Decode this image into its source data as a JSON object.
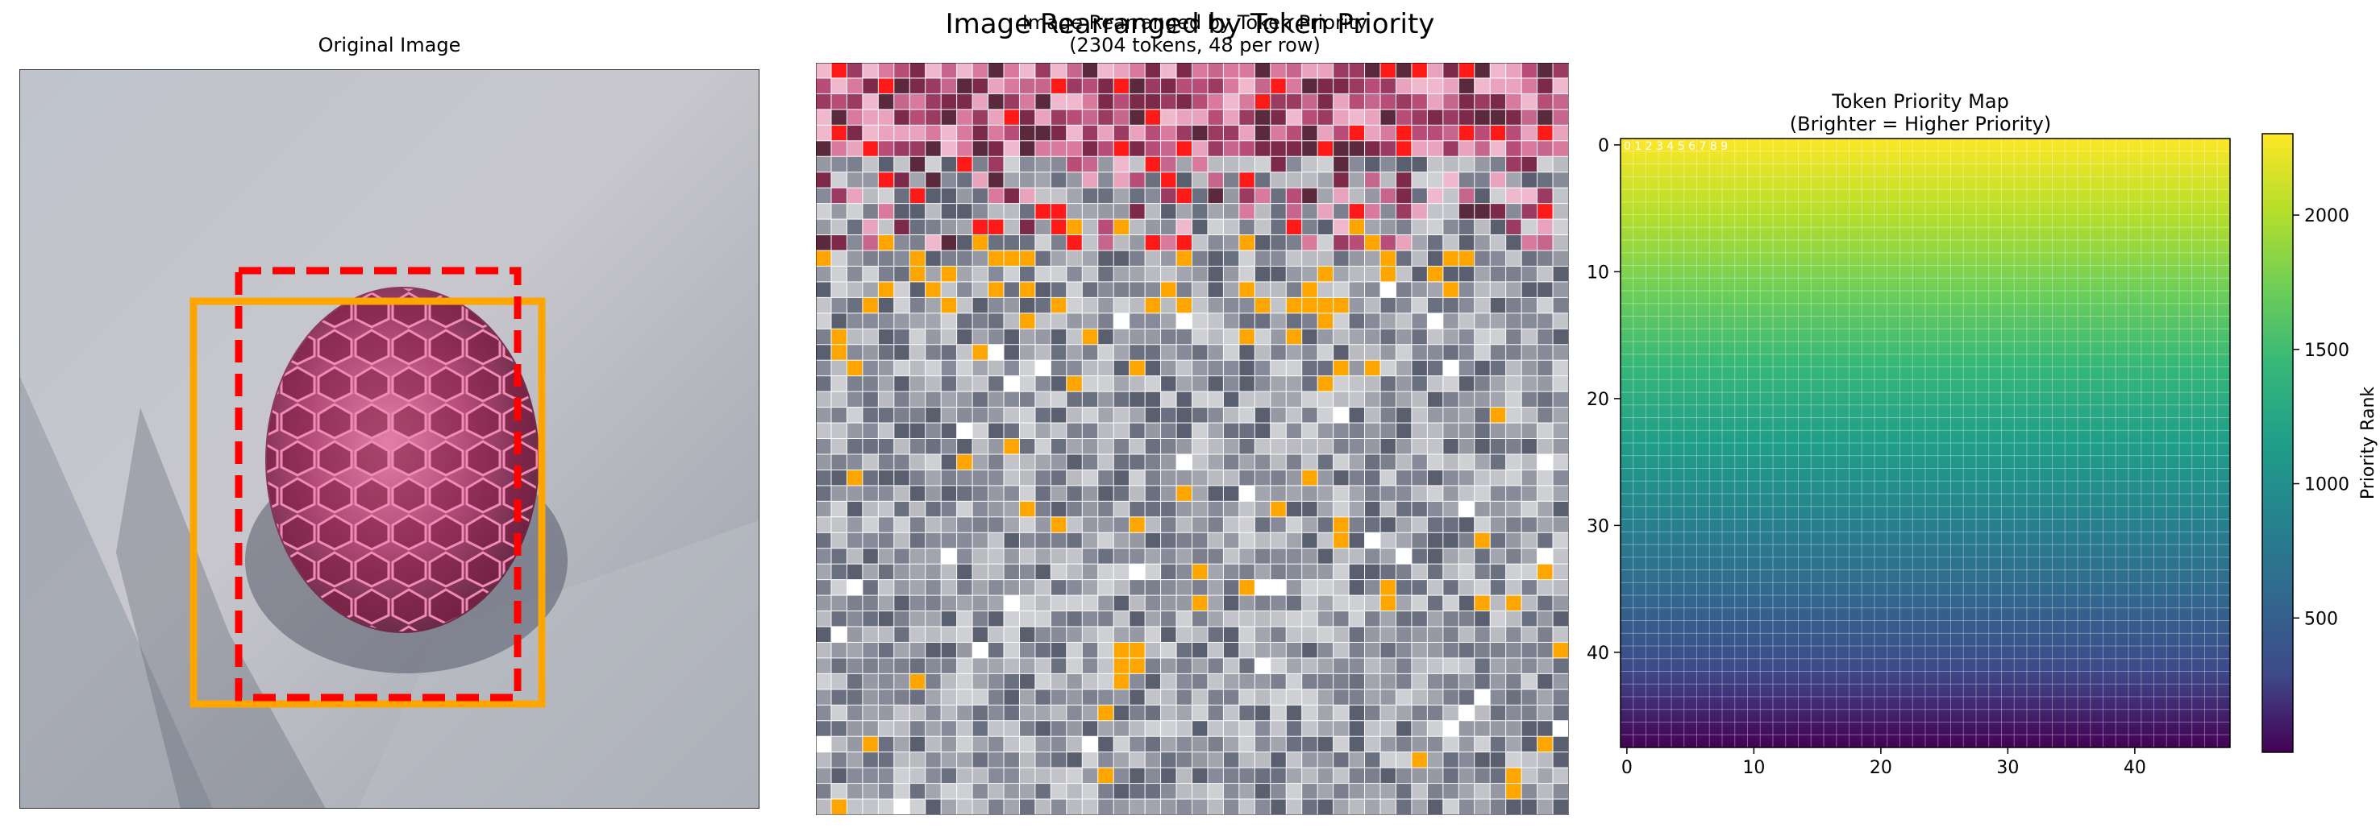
{
  "figure": {
    "suptitle": "Image Rearranged by Token Priority"
  },
  "panel1": {
    "title": "Original Image"
  },
  "panel2": {
    "title": "Image Rearranged by Token Priority\n(2304 tokens, 48 per row)"
  },
  "panel3": {
    "title": "Token Priority Map\n(Brighter = Higher Priority)",
    "colorbar_label": "Priority Rank",
    "overlay_text": "0 1 2 3 4 5 6 7 8 9"
  },
  "chart_data": [
    {
      "type": "image",
      "title": "Original Image",
      "annotations": [
        {
          "shape": "rectangle",
          "style": "solid",
          "color": "#ffa500"
        },
        {
          "shape": "rectangle",
          "style": "dashed",
          "color": "#ff0000"
        }
      ]
    },
    {
      "type": "image",
      "title": "Image Rearranged by Token Priority (2304 tokens, 48 per row)",
      "tokens": 2304,
      "per_row": 48
    },
    {
      "type": "heatmap",
      "title": "Token Priority Map (Brighter = Higher Priority)",
      "grid": [
        48,
        48
      ],
      "colormap": "viridis",
      "x_ticks": [
        0,
        10,
        20,
        30,
        40
      ],
      "y_ticks": [
        0,
        10,
        20,
        30,
        40
      ],
      "xlim": [
        -0.5,
        47.5
      ],
      "ylim": [
        47.5,
        -0.5
      ],
      "value_range": [
        0,
        2303
      ],
      "gradient": "rank decreases from top-left to bottom",
      "colorbar": {
        "label": "Priority Rank",
        "ticks": [
          500,
          1000,
          1500,
          2000
        ],
        "range": [
          0,
          2303
        ]
      }
    }
  ]
}
